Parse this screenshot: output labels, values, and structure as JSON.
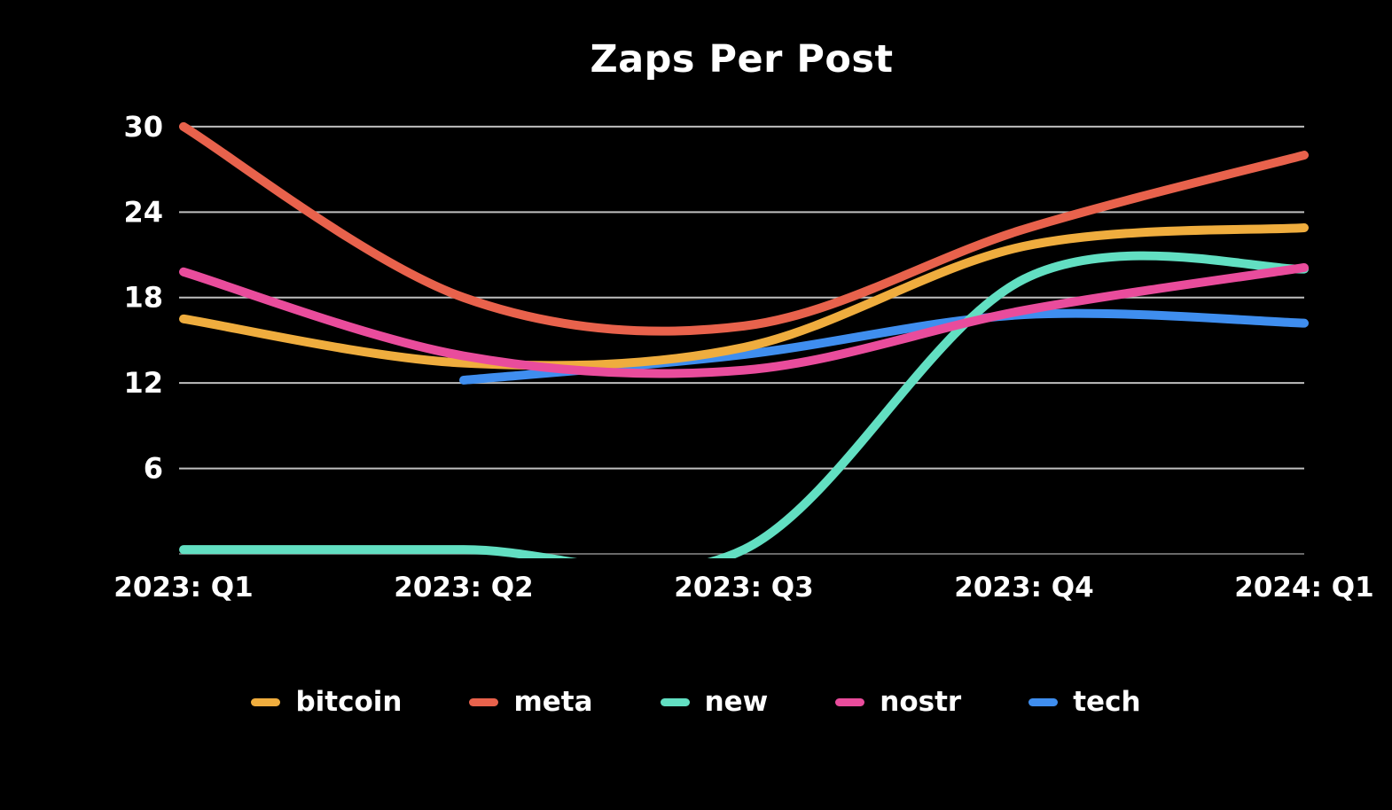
{
  "title": "Zaps Per Post",
  "colors": {
    "background": "#000000",
    "text": "#ffffff",
    "gridline": "#bfbfbf"
  },
  "chart_data": {
    "type": "line",
    "title": "Zaps Per Post",
    "categories": [
      "2023: Q1",
      "2023: Q2",
      "2023: Q3",
      "2023: Q4",
      "2024: Q1"
    ],
    "y_ticks": [
      6,
      12,
      18,
      24,
      30
    ],
    "ylim": [
      0,
      31
    ],
    "grid": true,
    "legend_position": "bottom",
    "series": [
      {
        "name": "bitcoin",
        "color": "#EFAD3E",
        "values": [
          16.5,
          13.4,
          14.5,
          21.6,
          22.9
        ]
      },
      {
        "name": "meta",
        "color": "#E8624C",
        "values": [
          30,
          18,
          16,
          22.8,
          28
        ]
      },
      {
        "name": "new",
        "color": "#62DFC2",
        "values": [
          0.3,
          0.3,
          0.3,
          19.3,
          20
        ]
      },
      {
        "name": "nostr",
        "color": "#E94C9C",
        "values": [
          19.8,
          13.9,
          12.9,
          17.1,
          20.1
        ]
      },
      {
        "name": "tech",
        "color": "#3F8EEF",
        "values": [
          null,
          12.2,
          14,
          16.8,
          16.2
        ]
      }
    ],
    "draw_order": [
      "meta",
      "tech",
      "new",
      "bitcoin",
      "nostr"
    ]
  }
}
